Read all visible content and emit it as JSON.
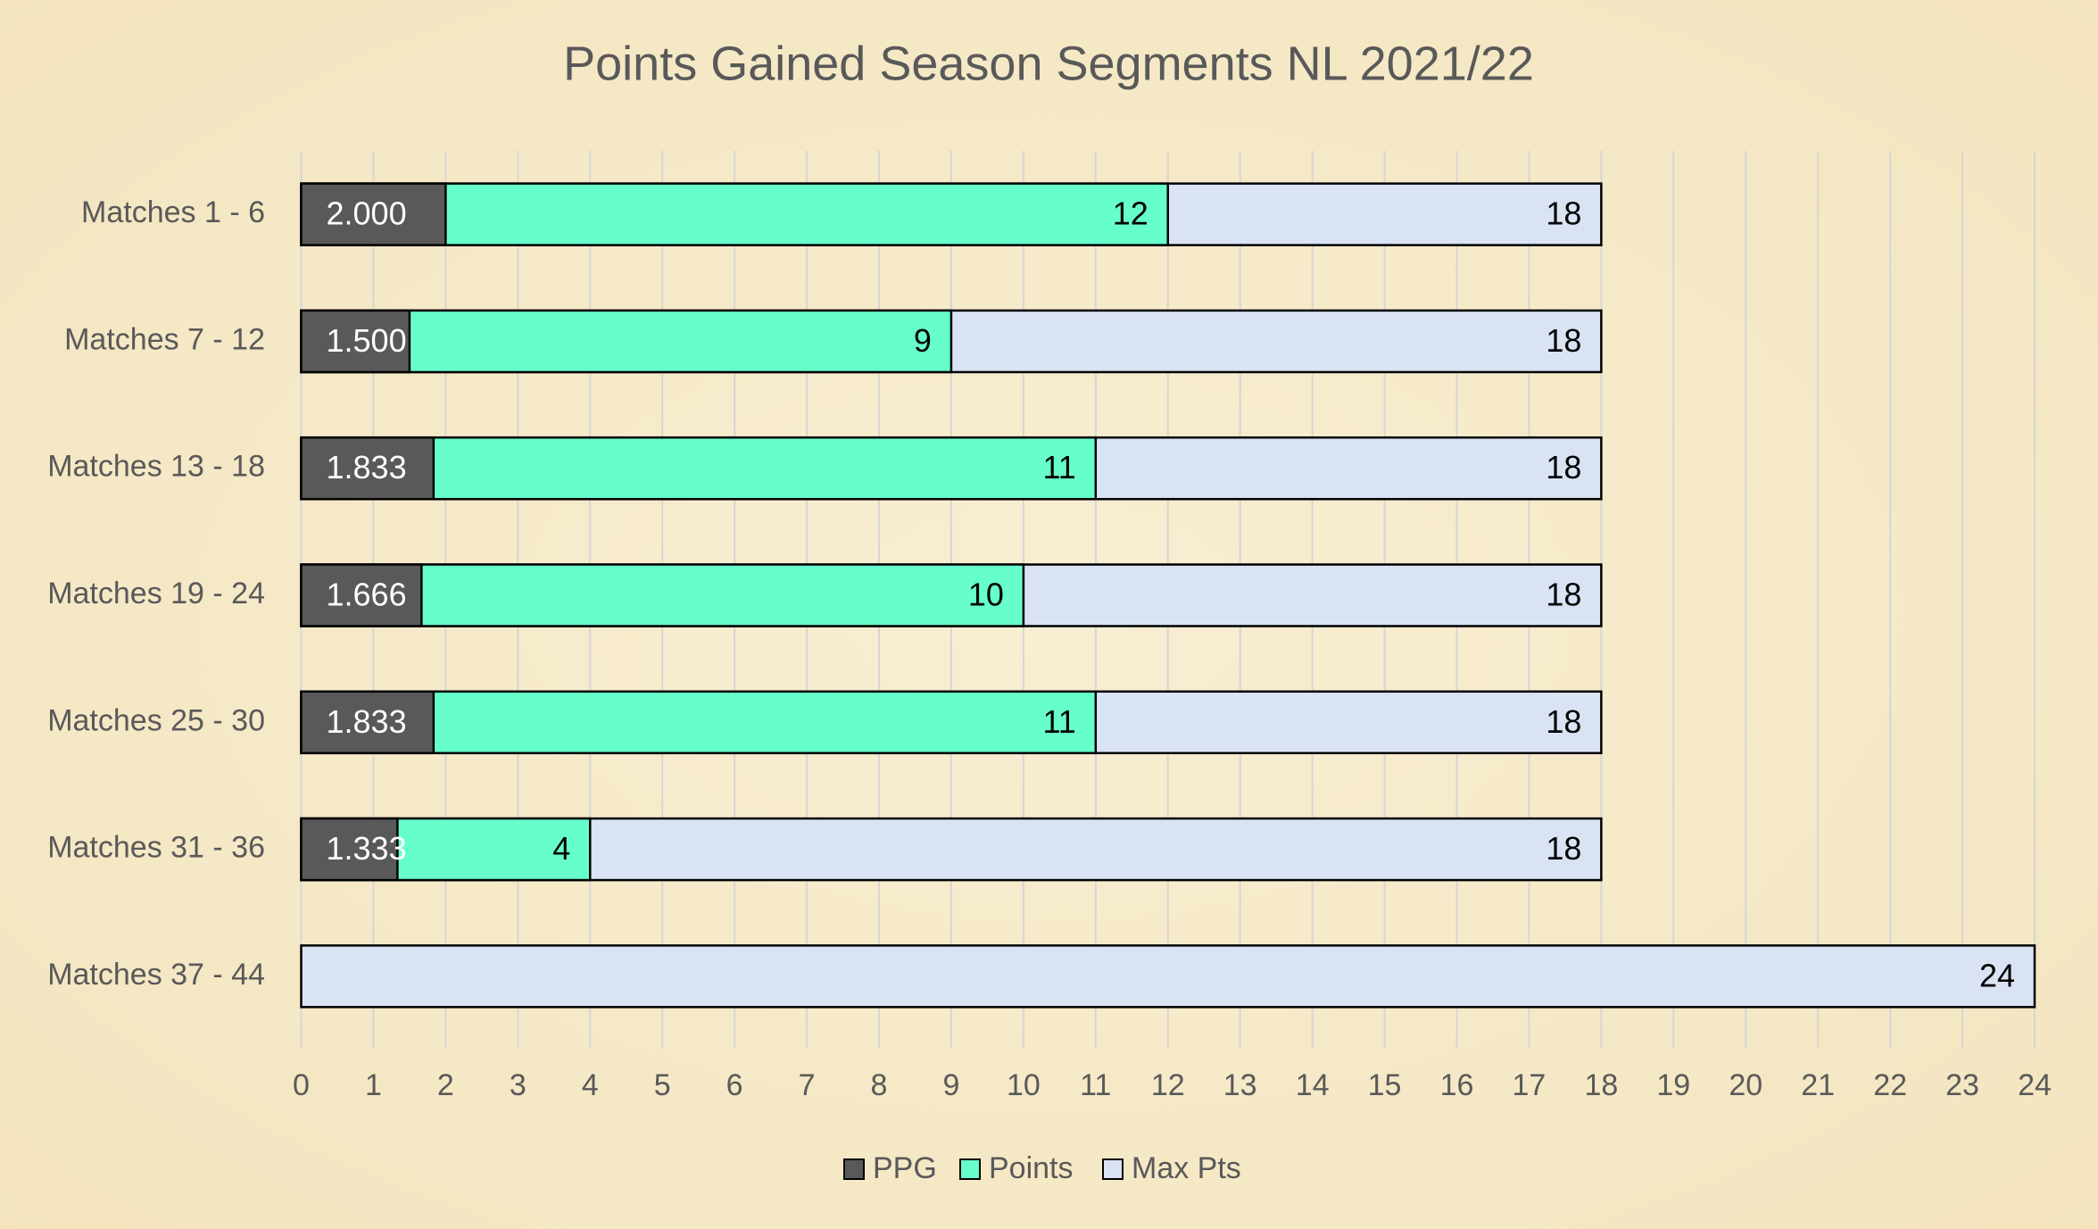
{
  "chart_data": {
    "type": "bar",
    "orientation": "horizontal",
    "overlap": true,
    "title": "Points Gained Season Segments NL 2021/22",
    "categories": [
      "Matches 1 - 6",
      "Matches 7 - 12",
      "Matches 13 - 18",
      "Matches 19 - 24",
      "Matches 25 - 30",
      "Matches 31 - 36",
      "Matches 37 - 44"
    ],
    "series": [
      {
        "name": "Max Pts",
        "color": "#dae3f3",
        "values": [
          18,
          18,
          18,
          18,
          18,
          18,
          24
        ]
      },
      {
        "name": "Points",
        "color": "#66ffcc",
        "values": [
          12,
          9,
          11,
          10,
          11,
          4,
          null
        ]
      },
      {
        "name": "PPG",
        "color": "#595959",
        "values": [
          2.0,
          1.5,
          1.833,
          1.666,
          1.833,
          1.333,
          null
        ],
        "value_labels": [
          "2.000",
          "1.500",
          "1.833",
          "1.666",
          "1.833",
          "1.333",
          null
        ]
      }
    ],
    "legend_order": [
      "PPG",
      "Points",
      "Max Pts"
    ],
    "xlim": [
      0,
      24
    ],
    "xticks": [
      0,
      1,
      2,
      3,
      4,
      5,
      6,
      7,
      8,
      9,
      10,
      11,
      12,
      13,
      14,
      15,
      16,
      17,
      18,
      19,
      20,
      21,
      22,
      23,
      24
    ],
    "grid": true,
    "legend": "bottom"
  }
}
